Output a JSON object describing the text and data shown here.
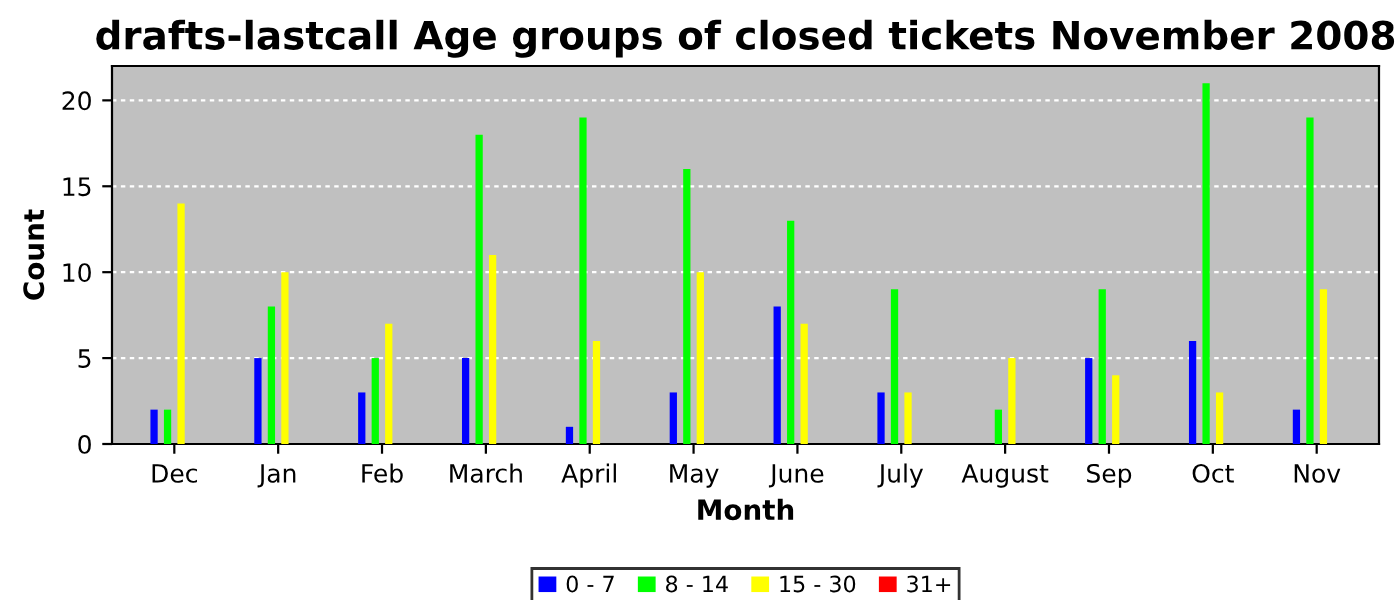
{
  "chart_data": {
    "type": "bar",
    "title": "drafts-lastcall Age groups of closed tickets November 2008",
    "xlabel": "Month",
    "ylabel": "Count",
    "categories": [
      "Dec",
      "Jan",
      "Feb",
      "March",
      "April",
      "May",
      "June",
      "July",
      "August",
      "Sep",
      "Oct",
      "Nov"
    ],
    "series": [
      {
        "name": "0 - 7",
        "color": "#0000ff",
        "values": [
          2,
          5,
          3,
          5,
          1,
          3,
          8,
          3,
          0,
          5,
          6,
          2
        ]
      },
      {
        "name": "8 - 14",
        "color": "#00ff00",
        "values": [
          2,
          8,
          5,
          18,
          19,
          16,
          13,
          9,
          2,
          9,
          21,
          19
        ]
      },
      {
        "name": "15 - 30",
        "color": "#ffff00",
        "values": [
          14,
          10,
          7,
          11,
          6,
          10,
          7,
          3,
          5,
          4,
          3,
          9
        ]
      },
      {
        "name": "31+",
        "color": "#ff0000",
        "values": [
          0,
          0,
          0,
          0,
          0,
          0,
          0,
          0,
          0,
          0,
          0,
          0
        ]
      }
    ],
    "ylim": [
      0,
      22
    ],
    "yticks": [
      0,
      5,
      10,
      15,
      20
    ],
    "grid": "y",
    "legend": "bottom"
  }
}
